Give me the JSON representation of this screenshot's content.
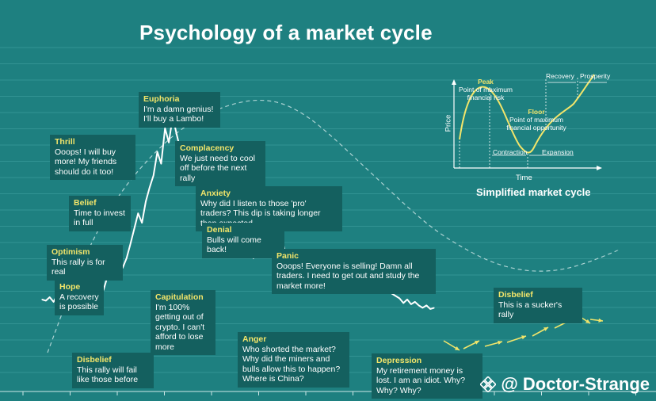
{
  "title": "Psychology of a market cycle",
  "watermark": "@ Doctor-Strange",
  "colors": {
    "background": "#1e8080",
    "box": "#14605f",
    "heading": "#f2e56a",
    "line": "#ffffff"
  },
  "stages": [
    {
      "id": "disbelief-1",
      "heading": "Disbelief",
      "text": "This rally will fail like those before"
    },
    {
      "id": "hope",
      "heading": "Hope",
      "text": "A recovery is possible"
    },
    {
      "id": "optimism",
      "heading": "Optimism",
      "text": "This rally is for real"
    },
    {
      "id": "belief",
      "heading": "Belief",
      "text": "Time to invest in full"
    },
    {
      "id": "thrill",
      "heading": "Thrill",
      "text": "Ooops! I will buy more! My friends should do it too!"
    },
    {
      "id": "euphoria",
      "heading": "Euphoria",
      "text": "I'm a damn genius! I'll buy a Lambo!"
    },
    {
      "id": "complacency",
      "heading": "Complacency",
      "text": "We just need to cool off before the next rally"
    },
    {
      "id": "anxiety",
      "heading": "Anxiety",
      "text": "Why did I listen to those 'pro' traders? This dip is taking longer than expected"
    },
    {
      "id": "denial",
      "heading": "Denial",
      "text": "Bulls will come back!"
    },
    {
      "id": "panic",
      "heading": "Panic",
      "text": "Ooops! Everyone is selling! Damn all traders. I need to get out and study the market more!"
    },
    {
      "id": "capitulation",
      "heading": "Capitulation",
      "text": "I'm 100% getting out of crypto. I can't afford to lose more"
    },
    {
      "id": "anger",
      "heading": "Anger",
      "text": "Who shorted the market? Why did the miners and bulls allow this to happen? Where is China?"
    },
    {
      "id": "depression",
      "heading": "Depression",
      "text": "My retirement money is lost. I am an idiot. Why? Why? Why?"
    },
    {
      "id": "disbelief-2",
      "heading": "Disbelief",
      "text": "This is a sucker's rally"
    }
  ],
  "inset": {
    "caption": "Simplified market cycle",
    "xlabel": "Time",
    "ylabel": "Price",
    "peak_heading": "Peak",
    "peak_text": "Point of maximum financial risk",
    "floor_heading": "Floor",
    "floor_text": "Point of maximum financial opportunity",
    "phases": [
      "Contraction",
      "Expansion",
      "Recovery",
      "Prosperity"
    ]
  },
  "chart_data": {
    "type": "line",
    "title": "Psychology of a market cycle",
    "series": [
      {
        "values": [
          45,
          44,
          47,
          43,
          49,
          46,
          50,
          48,
          52,
          55,
          58,
          54,
          60,
          62,
          59,
          57,
          53,
          64,
          70,
          73,
          68,
          72,
          80,
          92,
          105,
          118,
          110,
          128,
          140,
          150,
          170,
          160,
          190,
          178,
          200,
          185,
          172,
          158,
          168,
          150,
          162,
          148,
          140,
          152,
          130,
          145,
          120,
          110,
          128,
          112,
          100,
          115,
          95,
          108,
          90,
          80,
          98,
          85,
          100,
          112,
          92,
          118,
          105,
          88,
          75,
          70,
          82,
          73,
          64,
          60,
          66,
          55,
          58,
          62,
          56,
          52,
          55,
          65,
          72,
          70,
          78,
          75,
          82,
          68,
          72,
          60,
          57,
          63,
          55,
          58,
          54,
          50,
          48,
          46,
          42,
          45,
          41,
          43,
          40,
          38,
          40,
          37,
          38
        ]
      }
    ],
    "trend": [
      0,
      26,
      47,
      62,
      73,
      82,
      88,
      92,
      94,
      93,
      88,
      80,
      71,
      62,
      53,
      45,
      39,
      34,
      31,
      30,
      31,
      34,
      38
    ],
    "ylim": [
      0,
      200
    ]
  }
}
